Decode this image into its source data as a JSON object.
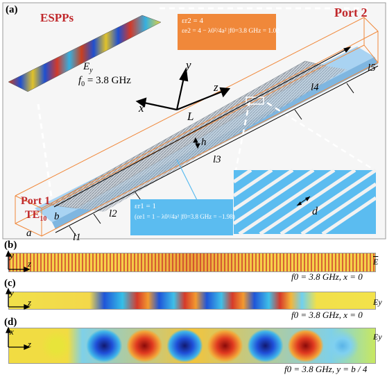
{
  "panel_a": {
    "label": "(a)",
    "espps_label": "ESPPs",
    "port2_label": "Port 2",
    "port1_label": "Port 1",
    "mode_label": "TE",
    "mode_sub": "10",
    "inset_field": "E",
    "inset_field_sub": "y",
    "inset_freq": "f",
    "inset_freq_sub": "0",
    "inset_freq_value": " = 3.8 GHz",
    "orange_line1": "εr2 = 4",
    "orange_line2": "εe2 = 4 − λ0²/4a² |f0=3.8 GHz = 1.02",
    "blue_line1": "εr1 = 1",
    "blue_line2": "(εe1 = 1 − λ0²/4a² |f0=3.8 GHz = −1.98)",
    "axes": {
      "x": "x",
      "y": "y",
      "z": "z",
      "L": "L"
    },
    "dims": {
      "a": "a",
      "b": "b",
      "h": "h",
      "d": "d",
      "l1": "l1",
      "l2": "l2",
      "l3": "l3",
      "l4": "l4",
      "l5": "l5"
    },
    "colors": {
      "accent_red": "#c0282b",
      "orange": "#f0883a",
      "light_blue": "#5bbcf0",
      "floor_blue": "#a9d3f2"
    }
  },
  "panel_b": {
    "label": "(b)",
    "axis_v": "y",
    "axis_h": "z",
    "field": "E",
    "caption": "f0 = 3.8 GHz, x = 0"
  },
  "panel_c": {
    "label": "(c)",
    "axis_v": "y",
    "axis_h": "z",
    "field": "Ey",
    "caption": "f0 = 3.8 GHz, x = 0"
  },
  "panel_d": {
    "label": "(d)",
    "axis_v": "x",
    "axis_h": "z",
    "field": "Ey",
    "caption": "f0 = 3.8 GHz, y = b / 4"
  }
}
